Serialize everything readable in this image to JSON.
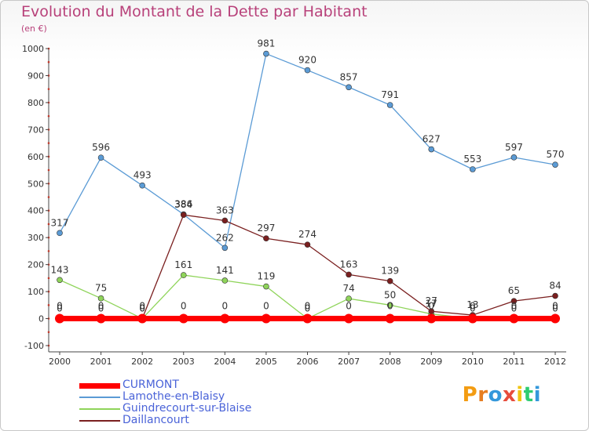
{
  "chart_data": {
    "type": "line",
    "title": "Evolution du Montant de la Dette par Habitant",
    "unit": "(en €)",
    "x": [
      "2000",
      "2001",
      "2002",
      "2003",
      "2004",
      "2005",
      "2006",
      "2007",
      "2008",
      "2009",
      "2010",
      "2011",
      "2012"
    ],
    "ylim": [
      -100,
      1000
    ],
    "yticks": [
      -100,
      0,
      100,
      200,
      300,
      400,
      500,
      600,
      700,
      800,
      900,
      1000
    ],
    "grid": false,
    "legend_position": "bottom-left",
    "series": [
      {
        "name": "CURMONT",
        "color": "#ff0000",
        "values": [
          0,
          0,
          0,
          0,
          0,
          0,
          0,
          0,
          0,
          0,
          0,
          0,
          0
        ],
        "labels": [
          "0",
          "0",
          "0",
          "0",
          "0",
          "0",
          "0",
          "0",
          "0",
          "0",
          "0",
          "0",
          "0"
        ]
      },
      {
        "name": "Lamothe-en-Blaisy",
        "color": "#5b9bd5",
        "values": [
          317,
          596,
          493,
          386,
          262,
          981,
          920,
          857,
          791,
          627,
          553,
          597,
          570
        ],
        "labels": [
          "317",
          "596",
          "493",
          "386",
          "262",
          "981",
          "920",
          "857",
          "791",
          "627",
          "553",
          "597",
          "570"
        ]
      },
      {
        "name": "Guindrecourt-sur-Blaise",
        "color": "#8fd45a",
        "values": [
          143,
          75,
          0,
          161,
          141,
          119,
          0,
          74,
          50,
          17,
          0,
          0,
          0
        ],
        "labels": [
          "143",
          "75",
          "0",
          "161",
          "141",
          "119",
          "0",
          "74",
          "50",
          "17",
          "0",
          "0",
          "0"
        ]
      },
      {
        "name": "Daillancourt",
        "color": "#7a1f1f",
        "values": [
          0,
          0,
          0,
          384,
          363,
          297,
          274,
          163,
          139,
          27,
          13,
          65,
          84
        ],
        "labels": [
          "0",
          "0",
          "0",
          "384",
          "363",
          "297",
          "274",
          "163",
          "139",
          "27",
          "13",
          "65",
          "84"
        ]
      }
    ]
  },
  "logo": {
    "text": "Proxiti"
  }
}
